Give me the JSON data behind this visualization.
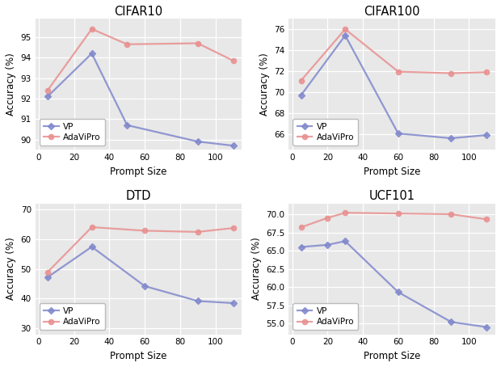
{
  "subplots": [
    {
      "title": "CIFAR10",
      "xlabel": "Prompt Size",
      "ylabel": "Accuracy (%)",
      "x": [
        5,
        30,
        50,
        90,
        110
      ],
      "vp_y": [
        92.1,
        94.2,
        90.7,
        89.9,
        89.7
      ],
      "ada_y": [
        92.4,
        95.4,
        94.65,
        94.7,
        93.85
      ],
      "ylim": [
        89.5,
        95.9
      ],
      "yticks": [
        90,
        91,
        92,
        93,
        94,
        95
      ],
      "xticks": [
        0,
        20,
        40,
        60,
        80,
        100
      ],
      "xlim": [
        -2,
        115
      ]
    },
    {
      "title": "CIFAR100",
      "xlabel": "Prompt Size",
      "ylabel": "Accuracy (%)",
      "x": [
        5,
        30,
        60,
        90,
        110
      ],
      "vp_y": [
        69.7,
        75.4,
        66.05,
        65.6,
        65.9
      ],
      "ada_y": [
        71.1,
        76.0,
        71.95,
        71.8,
        71.9
      ],
      "ylim": [
        64.5,
        77.0
      ],
      "yticks": [
        66,
        68,
        70,
        72,
        74,
        76
      ],
      "xticks": [
        0,
        20,
        40,
        60,
        80,
        100
      ],
      "xlim": [
        -2,
        115
      ]
    },
    {
      "title": "DTD",
      "xlabel": "Prompt Size",
      "ylabel": "Accuracy (%)",
      "x": [
        5,
        30,
        60,
        90,
        110
      ],
      "vp_y": [
        47.2,
        57.4,
        44.2,
        39.2,
        38.5
      ],
      "ada_y": [
        48.9,
        64.0,
        62.8,
        62.4,
        63.7
      ],
      "ylim": [
        28.0,
        72.0
      ],
      "yticks": [
        30,
        40,
        50,
        60,
        70
      ],
      "xticks": [
        0,
        20,
        40,
        60,
        80,
        100
      ],
      "xlim": [
        -2,
        115
      ]
    },
    {
      "title": "UCF101",
      "xlabel": "Prompt Size",
      "ylabel": "Accuracy (%)",
      "x": [
        5,
        20,
        30,
        60,
        90,
        110
      ],
      "vp_y": [
        65.5,
        65.8,
        66.3,
        59.3,
        55.2,
        54.5
      ],
      "ada_y": [
        68.2,
        69.5,
        70.2,
        70.1,
        70.0,
        69.3
      ],
      "ylim": [
        53.5,
        71.5
      ],
      "yticks": [
        55.0,
        57.5,
        60.0,
        62.5,
        65.0,
        67.5,
        70.0
      ],
      "xticks": [
        0,
        20,
        40,
        60,
        80,
        100
      ],
      "xlim": [
        -2,
        115
      ]
    }
  ],
  "vp_color": "#8088cc",
  "ada_color": "#e89090",
  "vp_marker": "D",
  "ada_marker": "o",
  "bg_color": "#e8e8e8",
  "grid_color": "#ffffff",
  "line_width": 1.6,
  "marker_size": 4.5,
  "font_size": 8.5,
  "title_font_size": 10.5
}
